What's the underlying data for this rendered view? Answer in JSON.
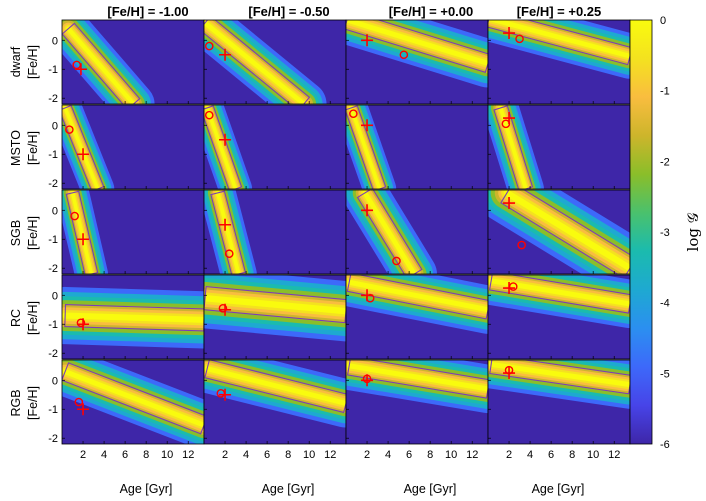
{
  "chart_data": {
    "type": "heatmap",
    "column_titles": [
      "[Fe/H] = -1.00",
      "[Fe/H] = -0.50",
      "[Fe/H] = +0.00",
      "[Fe/H] = +0.25"
    ],
    "row_labels": [
      "dwarf",
      "MSTO",
      "SGB",
      "RC",
      "RGB"
    ],
    "ylabel": "[Fe/H]",
    "xlabel": "Age [Gyr]",
    "x_ticks": [
      2,
      4,
      6,
      8,
      10,
      12
    ],
    "y_ticks": [
      0,
      -1,
      -2
    ],
    "xlim": [
      0,
      13.5
    ],
    "ylim": [
      -2.2,
      0.7
    ],
    "colorbar": {
      "label": "log 𝒢",
      "ticks": [
        0,
        -1,
        -2,
        -3,
        -4,
        -5,
        -6
      ],
      "range": [
        -6,
        0
      ]
    },
    "colormap": [
      "#3e26a8",
      "#4744e8",
      "#3d69fa",
      "#2b8ff0",
      "#1ea9d1",
      "#1bbbae",
      "#4ac16d",
      "#8abe2a",
      "#cdb52b",
      "#f9bd3f",
      "#f4e21f",
      "#f9fb0e"
    ],
    "contour_color": "#7a3fb4",
    "marker_color": "#ff0000",
    "panels": [
      [
        {
          "ridge_start": [
            0.6,
            0.4
          ],
          "ridge_end": [
            6.8,
            -2.2
          ],
          "width": 0.28,
          "truth": [
            1.8,
            -1.0
          ],
          "estimate": [
            1.4,
            -0.85
          ]
        },
        {
          "ridge_start": [
            0.1,
            0.6
          ],
          "ridge_end": [
            9.5,
            -2.2
          ],
          "width": 0.3,
          "truth": [
            2.0,
            -0.5
          ],
          "estimate": [
            0.5,
            -0.2
          ]
        },
        {
          "ridge_start": [
            0.1,
            0.7
          ],
          "ridge_end": [
            13.5,
            -0.8
          ],
          "width": 0.32,
          "truth": [
            2.0,
            0.0
          ],
          "estimate": [
            5.5,
            -0.5
          ]
        },
        {
          "ridge_start": [
            0.1,
            0.75
          ],
          "ridge_end": [
            13.5,
            -0.55
          ],
          "width": 0.3,
          "truth": [
            2.0,
            0.25
          ],
          "estimate": [
            3.0,
            0.05
          ]
        }
      ],
      [
        {
          "ridge_start": [
            0.3,
            0.6
          ],
          "ridge_end": [
            3.4,
            -2.2
          ],
          "width": 0.22,
          "truth": [
            2.0,
            -1.0
          ],
          "estimate": [
            0.7,
            -0.15
          ]
        },
        {
          "ridge_start": [
            0.3,
            0.6
          ],
          "ridge_end": [
            3.0,
            -2.2
          ],
          "width": 0.22,
          "truth": [
            2.0,
            -0.5
          ],
          "estimate": [
            0.5,
            0.35
          ]
        },
        {
          "ridge_start": [
            0.5,
            0.6
          ],
          "ridge_end": [
            3.2,
            -2.2
          ],
          "width": 0.22,
          "truth": [
            2.0,
            0.0
          ],
          "estimate": [
            0.7,
            0.4
          ]
        },
        {
          "ridge_start": [
            1.2,
            0.6
          ],
          "ridge_end": [
            3.6,
            -2.2
          ],
          "width": 0.24,
          "truth": [
            2.0,
            0.25
          ],
          "estimate": [
            1.7,
            0.05
          ]
        }
      ],
      [
        {
          "ridge_start": [
            1.0,
            0.6
          ],
          "ridge_end": [
            2.8,
            -2.2
          ],
          "width": 0.22,
          "truth": [
            2.0,
            -1.0
          ],
          "estimate": [
            1.2,
            -0.2
          ]
        },
        {
          "ridge_start": [
            1.3,
            0.6
          ],
          "ridge_end": [
            3.3,
            -2.2
          ],
          "width": 0.24,
          "truth": [
            2.0,
            -0.5
          ],
          "estimate": [
            2.4,
            -1.5
          ]
        },
        {
          "ridge_start": [
            1.8,
            0.6
          ],
          "ridge_end": [
            6.5,
            -2.2
          ],
          "width": 0.3,
          "truth": [
            2.0,
            0.0
          ],
          "estimate": [
            4.8,
            -1.75
          ]
        },
        {
          "ridge_start": [
            1.8,
            0.6
          ],
          "ridge_end": [
            13.5,
            -2.0
          ],
          "width": 0.4,
          "truth": [
            2.0,
            0.25
          ],
          "estimate": [
            3.2,
            -1.2
          ]
        }
      ],
      [
        {
          "ridge_start": [
            0.3,
            -0.7
          ],
          "ridge_end": [
            13.5,
            -0.85
          ],
          "width": 0.38,
          "truth": [
            2.0,
            -1.0
          ],
          "estimate": [
            1.8,
            -0.95
          ]
        },
        {
          "ridge_start": [
            0.1,
            -0.1
          ],
          "ridge_end": [
            13.5,
            -0.55
          ],
          "width": 0.4,
          "truth": [
            2.0,
            -0.5
          ],
          "estimate": [
            1.8,
            -0.45
          ]
        },
        {
          "ridge_start": [
            0.3,
            0.45
          ],
          "ridge_end": [
            13.5,
            -0.5
          ],
          "width": 0.32,
          "truth": [
            2.0,
            0.0
          ],
          "estimate": [
            2.3,
            -0.1
          ]
        },
        {
          "ridge_start": [
            0.3,
            0.5
          ],
          "ridge_end": [
            13.5,
            -0.3
          ],
          "width": 0.32,
          "truth": [
            2.0,
            0.25
          ],
          "estimate": [
            2.4,
            0.3
          ]
        }
      ],
      [
        {
          "ridge_start": [
            0.3,
            0.3
          ],
          "ridge_end": [
            13.5,
            -1.55
          ],
          "width": 0.32,
          "truth": [
            2.0,
            -1.0
          ],
          "estimate": [
            1.6,
            -0.75
          ]
        },
        {
          "ridge_start": [
            0.3,
            0.4
          ],
          "ridge_end": [
            13.5,
            -0.8
          ],
          "width": 0.32,
          "truth": [
            2.0,
            -0.5
          ],
          "estimate": [
            1.6,
            -0.45
          ]
        },
        {
          "ridge_start": [
            0.3,
            0.5
          ],
          "ridge_end": [
            13.5,
            -0.3
          ],
          "width": 0.32,
          "truth": [
            2.0,
            0.0
          ],
          "estimate": [
            2.0,
            0.05
          ]
        },
        {
          "ridge_start": [
            0.3,
            0.55
          ],
          "ridge_end": [
            13.5,
            -0.15
          ],
          "width": 0.32,
          "truth": [
            2.0,
            0.25
          ],
          "estimate": [
            2.0,
            0.35
          ]
        }
      ]
    ]
  }
}
